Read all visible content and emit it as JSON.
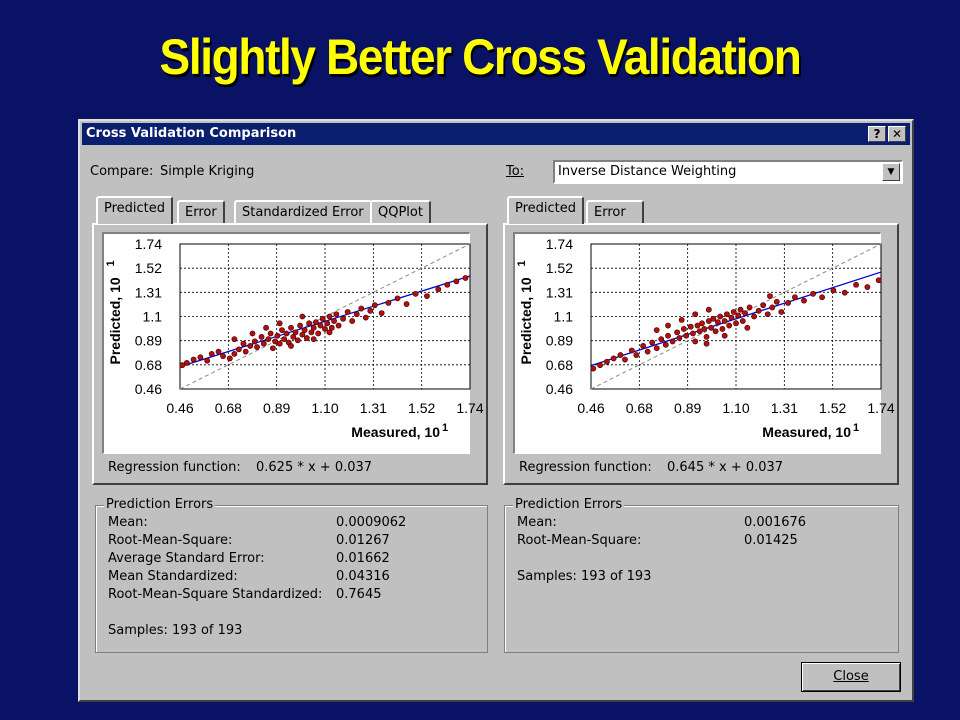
{
  "slide": {
    "title": "Slightly Better Cross Validation"
  },
  "dialog": {
    "title": "Cross Validation Comparison",
    "help_label": "?",
    "close_x_label": "✕",
    "close_button_label": "Close",
    "compare_label": "Compare:",
    "compare_value": "Simple Kriging",
    "to_label": "To:",
    "to_value": "Inverse Distance Weighting",
    "combo_arrow": "▼"
  },
  "left": {
    "tabs": [
      "Predicted",
      "Error",
      "Standardized Error",
      "QQPlot"
    ],
    "regression_label": "Regression function:",
    "regression_value": "0.625 * x + 0.037",
    "errors_title": "Prediction Errors",
    "stats": [
      {
        "label": "Mean:",
        "value": "0.0009062"
      },
      {
        "label": "Root-Mean-Square:",
        "value": "0.01267"
      },
      {
        "label": "Average Standard Error:",
        "value": "0.01662"
      },
      {
        "label": "Mean Standardized:",
        "value": "0.04316"
      },
      {
        "label": "Root-Mean-Square Standardized:",
        "value": "0.7645"
      }
    ],
    "samples": "Samples: 193 of 193"
  },
  "right": {
    "tabs": [
      "Predicted",
      "Error"
    ],
    "regression_label": "Regression function:",
    "regression_value": "0.645 * x + 0.037",
    "errors_title": "Prediction Errors",
    "stats": [
      {
        "label": "Mean:",
        "value": "0.001676"
      },
      {
        "label": "Root-Mean-Square:",
        "value": "0.01425"
      }
    ],
    "samples": "Samples: 193 of 193"
  },
  "chart_data": [
    {
      "type": "scatter",
      "xlabel": "Measured, 10",
      "xlabel_exp": "1",
      "ylabel": "Predicted, 10",
      "ylabel_exp": "1",
      "xticks": [
        "0.46",
        "0.68",
        "0.89",
        "1.10",
        "1.31",
        "1.52",
        "1.74"
      ],
      "yticks": [
        "1.74",
        "1.52",
        "1.31",
        "1.1",
        "0.89",
        "0.68",
        "0.46"
      ],
      "xlim": [
        0.46,
        1.74
      ],
      "ylim": [
        0.46,
        1.74
      ],
      "regression": {
        "slope": 0.625,
        "intercept": 0.037
      },
      "grid": true,
      "points": [
        [
          0.47,
          0.67
        ],
        [
          0.49,
          0.69
        ],
        [
          0.52,
          0.72
        ],
        [
          0.55,
          0.74
        ],
        [
          0.58,
          0.71
        ],
        [
          0.6,
          0.77
        ],
        [
          0.63,
          0.79
        ],
        [
          0.65,
          0.75
        ],
        [
          0.68,
          0.73
        ],
        [
          0.7,
          0.77
        ],
        [
          0.72,
          0.81
        ],
        [
          0.74,
          0.86
        ],
        [
          0.75,
          0.79
        ],
        [
          0.77,
          0.84
        ],
        [
          0.79,
          0.88
        ],
        [
          0.8,
          0.83
        ],
        [
          0.82,
          0.92
        ],
        [
          0.83,
          0.86
        ],
        [
          0.85,
          0.9
        ],
        [
          0.86,
          0.95
        ],
        [
          0.87,
          0.82
        ],
        [
          0.88,
          0.88
        ],
        [
          0.89,
          0.93
        ],
        [
          0.9,
          0.86
        ],
        [
          0.91,
          0.98
        ],
        [
          0.92,
          0.9
        ],
        [
          0.93,
          0.95
        ],
        [
          0.94,
          0.87
        ],
        [
          0.95,
          1.0
        ],
        [
          0.96,
          0.92
        ],
        [
          0.97,
          0.96
        ],
        [
          0.98,
          0.89
        ],
        [
          0.99,
          1.02
        ],
        [
          1.0,
          0.94
        ],
        [
          1.01,
          0.98
        ],
        [
          1.02,
          0.91
        ],
        [
          1.03,
          1.04
        ],
        [
          1.04,
          0.96
        ],
        [
          1.05,
          1.0
        ],
        [
          1.06,
          1.05
        ],
        [
          1.07,
          0.95
        ],
        [
          1.08,
          1.02
        ],
        [
          1.09,
          1.08
        ],
        [
          1.1,
          0.99
        ],
        [
          1.11,
          1.04
        ],
        [
          1.12,
          1.1
        ],
        [
          1.13,
          1.0
        ],
        [
          1.14,
          1.06
        ],
        [
          1.15,
          1.12
        ],
        [
          1.16,
          1.02
        ],
        [
          1.18,
          1.08
        ],
        [
          1.2,
          1.14
        ],
        [
          1.22,
          1.06
        ],
        [
          1.24,
          1.12
        ],
        [
          1.26,
          1.17
        ],
        [
          1.28,
          1.09
        ],
        [
          1.3,
          1.15
        ],
        [
          1.32,
          1.2
        ],
        [
          1.35,
          1.13
        ],
        [
          1.38,
          1.22
        ],
        [
          1.42,
          1.26
        ],
        [
          1.46,
          1.21
        ],
        [
          1.5,
          1.3
        ],
        [
          1.55,
          1.28
        ],
        [
          1.6,
          1.34
        ],
        [
          1.64,
          1.38
        ],
        [
          1.68,
          1.41
        ],
        [
          1.72,
          1.44
        ],
        [
          0.84,
          1.0
        ],
        [
          0.9,
          1.04
        ],
        [
          1.0,
          1.1
        ],
        [
          0.78,
          0.95
        ],
        [
          0.95,
          0.84
        ],
        [
          1.05,
          0.9
        ],
        [
          1.12,
          0.96
        ],
        [
          0.7,
          0.9
        ]
      ]
    },
    {
      "type": "scatter",
      "xlabel": "Measured, 10",
      "xlabel_exp": "1",
      "ylabel": "Predicted, 10",
      "ylabel_exp": "1",
      "xticks": [
        "0.46",
        "0.68",
        "0.89",
        "1.10",
        "1.31",
        "1.52",
        "1.74"
      ],
      "yticks": [
        "1.74",
        "1.52",
        "1.31",
        "1.1",
        "0.89",
        "0.68",
        "0.46"
      ],
      "xlim": [
        0.46,
        1.74
      ],
      "ylim": [
        0.46,
        1.74
      ],
      "regression": {
        "slope": 0.645,
        "intercept": 0.037
      },
      "grid": true,
      "points": [
        [
          0.47,
          0.64
        ],
        [
          0.5,
          0.67
        ],
        [
          0.53,
          0.7
        ],
        [
          0.56,
          0.73
        ],
        [
          0.59,
          0.76
        ],
        [
          0.61,
          0.72
        ],
        [
          0.64,
          0.8
        ],
        [
          0.66,
          0.76
        ],
        [
          0.69,
          0.84
        ],
        [
          0.71,
          0.79
        ],
        [
          0.73,
          0.87
        ],
        [
          0.75,
          0.82
        ],
        [
          0.77,
          0.9
        ],
        [
          0.79,
          0.85
        ],
        [
          0.8,
          0.93
        ],
        [
          0.82,
          0.88
        ],
        [
          0.84,
          0.96
        ],
        [
          0.85,
          0.91
        ],
        [
          0.87,
          0.99
        ],
        [
          0.88,
          0.93
        ],
        [
          0.9,
          1.01
        ],
        [
          0.91,
          0.95
        ],
        [
          0.92,
          0.88
        ],
        [
          0.93,
          1.02
        ],
        [
          0.94,
          0.97
        ],
        [
          0.95,
          1.04
        ],
        [
          0.96,
          0.99
        ],
        [
          0.97,
          0.92
        ],
        [
          0.98,
          1.06
        ],
        [
          0.99,
          1.0
        ],
        [
          1.0,
          1.08
        ],
        [
          1.01,
          0.97
        ],
        [
          1.02,
          1.05
        ],
        [
          1.03,
          1.1
        ],
        [
          1.04,
          0.99
        ],
        [
          1.05,
          1.06
        ],
        [
          1.06,
          1.12
        ],
        [
          1.07,
          1.02
        ],
        [
          1.08,
          1.09
        ],
        [
          1.09,
          1.14
        ],
        [
          1.1,
          1.04
        ],
        [
          1.11,
          1.11
        ],
        [
          1.12,
          1.16
        ],
        [
          1.13,
          1.06
        ],
        [
          1.14,
          1.13
        ],
        [
          1.16,
          1.18
        ],
        [
          1.18,
          1.1
        ],
        [
          1.2,
          1.15
        ],
        [
          1.22,
          1.2
        ],
        [
          1.24,
          1.12
        ],
        [
          1.26,
          1.18
        ],
        [
          1.28,
          1.23
        ],
        [
          1.3,
          1.14
        ],
        [
          1.33,
          1.22
        ],
        [
          1.36,
          1.27
        ],
        [
          1.4,
          1.24
        ],
        [
          1.44,
          1.3
        ],
        [
          1.48,
          1.27
        ],
        [
          1.53,
          1.33
        ],
        [
          1.58,
          1.31
        ],
        [
          1.63,
          1.38
        ],
        [
          1.68,
          1.36
        ],
        [
          1.73,
          1.42
        ],
        [
          0.86,
          1.07
        ],
        [
          0.92,
          1.12
        ],
        [
          0.98,
          1.16
        ],
        [
          0.8,
          1.02
        ],
        [
          0.97,
          0.86
        ],
        [
          1.05,
          0.93
        ],
        [
          1.15,
          1.0
        ],
        [
          0.75,
          0.98
        ],
        [
          1.25,
          1.28
        ]
      ]
    }
  ]
}
